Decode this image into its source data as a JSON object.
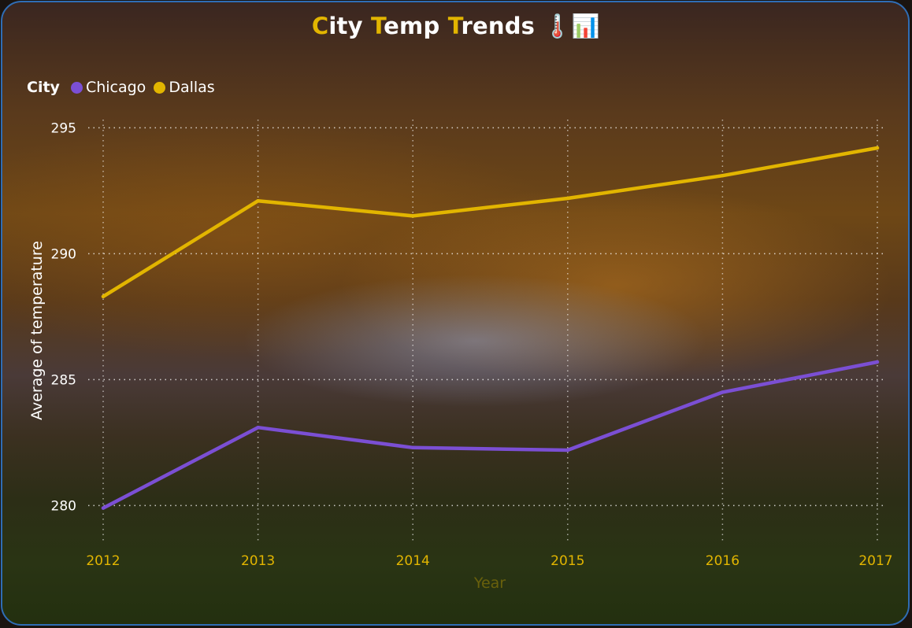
{
  "title": {
    "parts": [
      {
        "text": "C",
        "accent": true
      },
      {
        "text": "ity ",
        "accent": false
      },
      {
        "text": "T",
        "accent": true
      },
      {
        "text": "emp ",
        "accent": false
      },
      {
        "text": "T",
        "accent": true
      },
      {
        "text": "rends ",
        "accent": false
      },
      {
        "text": "🌡️📊",
        "accent": false
      }
    ]
  },
  "legend": {
    "title": "City",
    "items": [
      {
        "label": "Chicago",
        "color": "#7b4fd4"
      },
      {
        "label": "Dallas",
        "color": "#e2b500"
      }
    ]
  },
  "colors": {
    "accent": "#e2b500",
    "border": "#2f6db5",
    "tick_x": "#e2b500",
    "tick_y": "#ffffff"
  },
  "chart_data": {
    "type": "line",
    "x": [
      "2012",
      "2013",
      "2014",
      "2015",
      "2016",
      "2017"
    ],
    "series": [
      {
        "name": "Chicago",
        "color": "#7b4fd4",
        "values": [
          279.9,
          283.1,
          282.3,
          282.2,
          284.5,
          285.7
        ]
      },
      {
        "name": "Dallas",
        "color": "#e2b500",
        "values": [
          288.3,
          292.1,
          291.5,
          292.2,
          293.1,
          294.2
        ]
      }
    ],
    "xlabel": "Year",
    "ylabel": "Average of temperature",
    "yticks": [
      280,
      285,
      290,
      295
    ],
    "ylim": [
      279.2,
      295.7
    ],
    "grid": true,
    "legend_position": "top-left"
  }
}
